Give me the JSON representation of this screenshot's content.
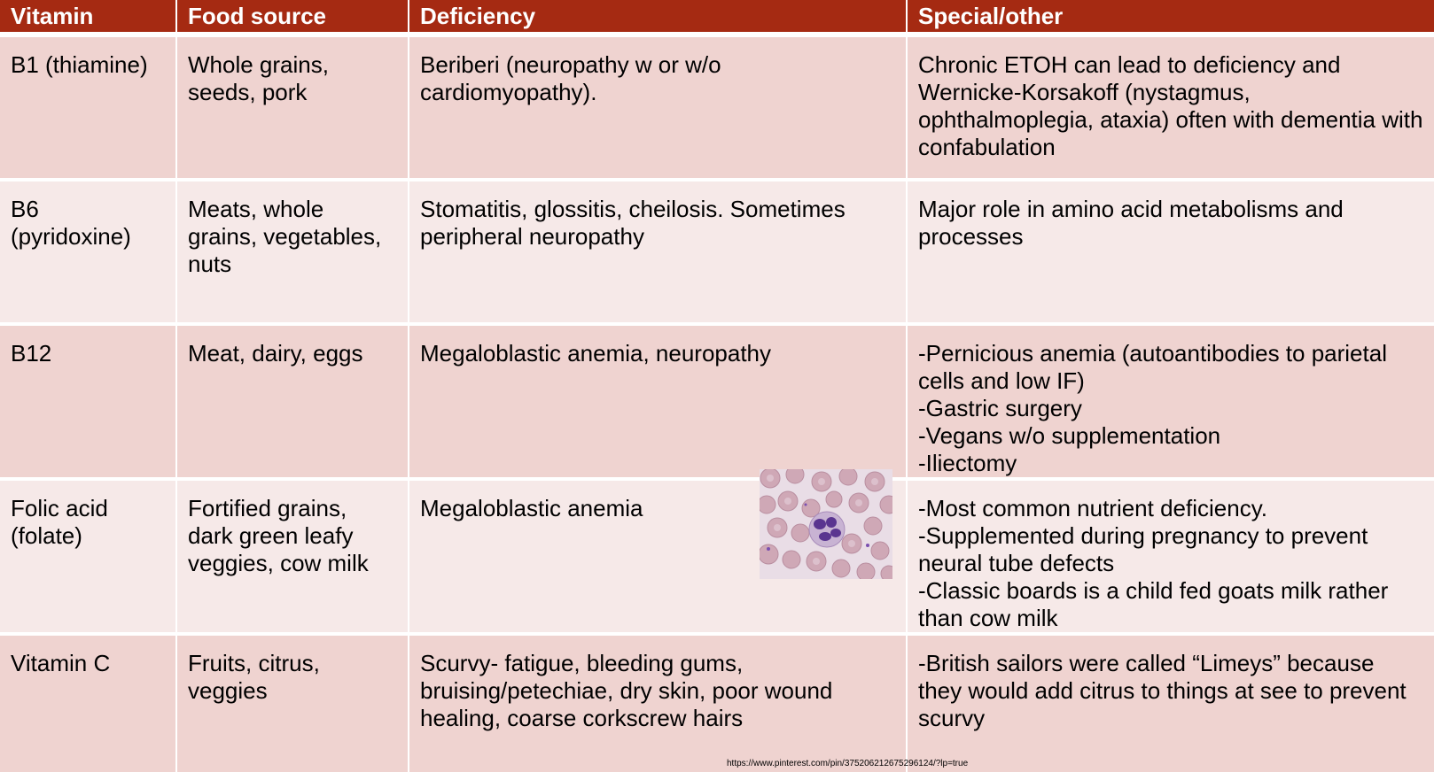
{
  "table": {
    "headers": [
      "Vitamin",
      "Food source",
      "Deficiency",
      "Special/other"
    ],
    "rows": [
      {
        "vitamin": "B1 (thiamine)",
        "food": "Whole grains, seeds, pork",
        "deficiency": "Beriberi (neuropathy w or w/o cardiomyopathy).",
        "special": "Chronic ETOH can lead to deficiency and Wernicke-Korsakoff (nystagmus, ophthalmoplegia, ataxia) often with dementia with confabulation"
      },
      {
        "vitamin": "B6 (pyridoxine)",
        "food": "Meats, whole grains, vegetables, nuts",
        "deficiency": "Stomatitis, glossitis, cheilosis. Sometimes peripheral neuropathy",
        "special": "Major role in amino acid metabolisms and processes"
      },
      {
        "vitamin": "B12",
        "food": "Meat, dairy, eggs",
        "deficiency": "Megaloblastic anemia, neuropathy",
        "special": "-Pernicious anemia (autoantibodies to parietal cells and low IF)\n-Gastric surgery\n-Vegans w/o supplementation\n-Iliectomy"
      },
      {
        "vitamin": "Folic acid (folate)",
        "food": "Fortified grains, dark green leafy veggies, cow milk",
        "deficiency": "Megaloblastic anemia",
        "special": "-Most common nutrient deficiency.\n-Supplemented during pregnancy to prevent neural tube defects\n-Classic boards is a child fed goats milk rather than cow milk"
      },
      {
        "vitamin": "Vitamin C",
        "food": "Fruits, citrus, veggies",
        "deficiency": "Scurvy- fatigue, bleeding gums, bruising/petechiae, dry skin, poor wound healing, coarse corkscrew hairs",
        "special": "-British sailors were called “Limeys” because they would add citrus to things at see to prevent scurvy"
      }
    ]
  },
  "image": {
    "icon": "blood-smear-micrograph"
  },
  "source_url": "https://www.pinterest.com/pin/375206212675296124/?lp=true",
  "colors": {
    "header_bg": "#a52a12",
    "row_odd_bg": "#efd3d0",
    "row_even_bg": "#f6e9e8"
  }
}
